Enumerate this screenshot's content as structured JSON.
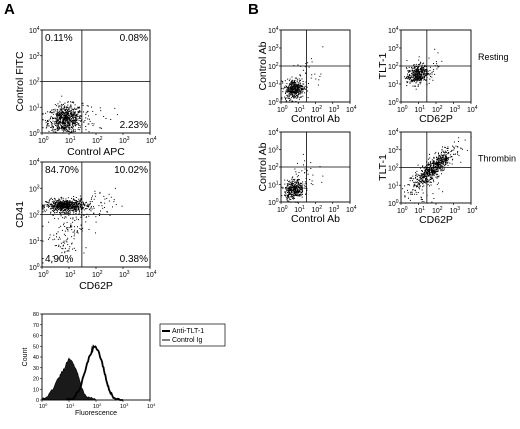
{
  "panels": {
    "A": "A",
    "B": "B"
  },
  "chart_data": [
    {
      "id": "A1",
      "type": "scatter",
      "xlabel": "Control APC",
      "ylabel": "Control FITC",
      "x_scale": "log",
      "y_scale": "log",
      "xlim": [
        1,
        10000
      ],
      "ylim": [
        1,
        10000
      ],
      "quadrant_percentages": {
        "upper_left": "0.11%",
        "upper_right": "0.08%",
        "lower_left": "",
        "lower_right": "2.23%"
      },
      "gate": {
        "x": 30,
        "y": 100
      },
      "population": "negative",
      "grid": false
    },
    {
      "id": "A2",
      "type": "scatter",
      "xlabel": "CD62P",
      "ylabel": "CD41",
      "x_scale": "log",
      "y_scale": "log",
      "xlim": [
        1,
        10000
      ],
      "ylim": [
        1,
        10000
      ],
      "quadrant_percentages": {
        "upper_left": "84.70%",
        "upper_right": "10.02%",
        "lower_left": "4.90%",
        "lower_right": "0.38%"
      },
      "gate": {
        "x": 30,
        "y": 100
      },
      "population": "cd41",
      "grid": false
    },
    {
      "id": "A3",
      "type": "area",
      "xlabel": "Fluorescence",
      "ylabel": "Count",
      "x_scale": "log",
      "xlim": [
        1,
        10000
      ],
      "ylim": [
        0,
        80
      ],
      "y_ticks": [
        0,
        10,
        20,
        30,
        40,
        50,
        60,
        70,
        80
      ],
      "legend": [
        "Anti-TLT-1",
        "Control Ig"
      ],
      "legend_position": "right",
      "series": [
        {
          "name": "Control Ig",
          "style": "filled",
          "x": [
            1,
            1.5,
            2,
            3,
            4,
            5,
            6,
            7,
            8,
            10,
            12,
            15,
            20,
            25,
            30,
            40,
            60,
            100
          ],
          "y": [
            1,
            3,
            7,
            14,
            20,
            24,
            27,
            30,
            35,
            39,
            37,
            33,
            26,
            18,
            11,
            5,
            2,
            0
          ]
        },
        {
          "name": "Anti-TLT-1",
          "style": "line",
          "x": [
            8,
            15,
            25,
            40,
            55,
            70,
            80,
            100,
            130,
            160,
            200,
            250,
            300,
            400,
            600,
            1000
          ],
          "y": [
            0,
            2,
            10,
            27,
            40,
            45,
            50,
            49,
            44,
            37,
            27,
            17,
            10,
            4,
            1,
            0
          ]
        }
      ]
    },
    {
      "id": "B1",
      "type": "scatter",
      "xlabel": "Control Ab",
      "ylabel": "Control Ab",
      "x_scale": "log",
      "y_scale": "log",
      "xlim": [
        1,
        10000
      ],
      "ylim": [
        1,
        10000
      ],
      "gate": {
        "x": 30,
        "y": 100
      },
      "population": "negative_small",
      "grid": false
    },
    {
      "id": "B2",
      "type": "scatter",
      "xlabel": "CD62P",
      "ylabel": "TLT-1",
      "condition": "Resting",
      "x_scale": "log",
      "y_scale": "log",
      "xlim": [
        1,
        10000
      ],
      "ylim": [
        1,
        10000
      ],
      "gate": {
        "x": 30,
        "y": 100
      },
      "population": "resting",
      "grid": false
    },
    {
      "id": "B3",
      "type": "scatter",
      "xlabel": "Control Ab",
      "ylabel": "Control Ab",
      "x_scale": "log",
      "y_scale": "log",
      "xlim": [
        1,
        10000
      ],
      "ylim": [
        1,
        10000
      ],
      "gate": {
        "x": 30,
        "y": 100
      },
      "population": "negative_small",
      "grid": false
    },
    {
      "id": "B4",
      "type": "scatter",
      "xlabel": "CD62P",
      "ylabel": "TLT-1",
      "condition": "Thrombin",
      "x_scale": "log",
      "y_scale": "log",
      "xlim": [
        1,
        10000
      ],
      "ylim": [
        1,
        10000
      ],
      "gate": {
        "x": 30,
        "y": 100
      },
      "population": "thrombin",
      "grid": false
    }
  ]
}
